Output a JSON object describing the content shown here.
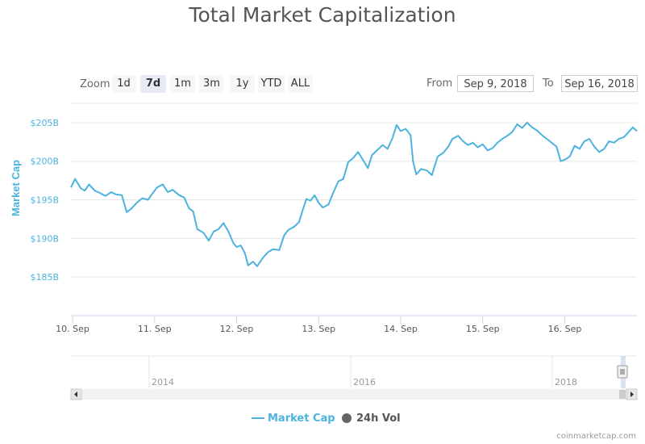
{
  "chart_data": {
    "type": "line",
    "title": "Total Market Capitalization",
    "ylabel": "Market Cap",
    "xlabel": "",
    "y_ticks": [
      {
        "value": 185,
        "label": "$185B"
      },
      {
        "value": 190,
        "label": "$190B"
      },
      {
        "value": 195,
        "label": "$195B"
      },
      {
        "value": 200,
        "label": "$200B"
      },
      {
        "value": 205,
        "label": "$205B"
      }
    ],
    "x_ticks": [
      "10. Sep",
      "11. Sep",
      "12. Sep",
      "13. Sep",
      "14. Sep",
      "15. Sep",
      "16. Sep"
    ],
    "ylim": [
      180,
      207.5
    ],
    "x_unit": "days from 10. Sep 00:00",
    "xlim": [
      -0.02,
      6.88
    ],
    "grid": true,
    "series": [
      {
        "name": "Market Cap",
        "color": "#4cb3e0",
        "points": [
          [
            -0.02,
            196.6
          ],
          [
            0.03,
            197.7
          ],
          [
            0.1,
            196.5
          ],
          [
            0.15,
            196.2
          ],
          [
            0.2,
            197.0
          ],
          [
            0.27,
            196.2
          ],
          [
            0.33,
            195.9
          ],
          [
            0.4,
            195.5
          ],
          [
            0.47,
            196.0
          ],
          [
            0.53,
            195.7
          ],
          [
            0.6,
            195.6
          ],
          [
            0.66,
            193.4
          ],
          [
            0.72,
            193.9
          ],
          [
            0.78,
            194.6
          ],
          [
            0.85,
            195.2
          ],
          [
            0.92,
            195.0
          ],
          [
            0.98,
            195.9
          ],
          [
            1.03,
            196.6
          ],
          [
            1.1,
            197.0
          ],
          [
            1.16,
            196.0
          ],
          [
            1.22,
            196.3
          ],
          [
            1.3,
            195.6
          ],
          [
            1.36,
            195.3
          ],
          [
            1.42,
            193.9
          ],
          [
            1.47,
            193.5
          ],
          [
            1.52,
            191.2
          ],
          [
            1.6,
            190.7
          ],
          [
            1.66,
            189.7
          ],
          [
            1.72,
            190.9
          ],
          [
            1.78,
            191.2
          ],
          [
            1.84,
            192.0
          ],
          [
            1.9,
            190.9
          ],
          [
            1.96,
            189.4
          ],
          [
            2.0,
            188.9
          ],
          [
            2.05,
            189.1
          ],
          [
            2.1,
            188.1
          ],
          [
            2.14,
            186.5
          ],
          [
            2.2,
            187.0
          ],
          [
            2.25,
            186.4
          ],
          [
            2.32,
            187.5
          ],
          [
            2.38,
            188.2
          ],
          [
            2.44,
            188.6
          ],
          [
            2.52,
            188.5
          ],
          [
            2.58,
            190.4
          ],
          [
            2.63,
            191.1
          ],
          [
            2.7,
            191.5
          ],
          [
            2.76,
            192.1
          ],
          [
            2.8,
            193.5
          ],
          [
            2.85,
            195.1
          ],
          [
            2.9,
            194.9
          ],
          [
            2.95,
            195.6
          ],
          [
            3.0,
            194.6
          ],
          [
            3.05,
            194.0
          ],
          [
            3.12,
            194.4
          ],
          [
            3.18,
            196.0
          ],
          [
            3.24,
            197.4
          ],
          [
            3.3,
            197.7
          ],
          [
            3.36,
            199.9
          ],
          [
            3.42,
            200.4
          ],
          [
            3.48,
            201.2
          ],
          [
            3.55,
            200.0
          ],
          [
            3.6,
            199.1
          ],
          [
            3.65,
            200.8
          ],
          [
            3.72,
            201.5
          ],
          [
            3.78,
            202.1
          ],
          [
            3.84,
            201.6
          ],
          [
            3.9,
            203.0
          ],
          [
            3.95,
            204.7
          ],
          [
            4.0,
            203.9
          ],
          [
            4.06,
            204.2
          ],
          [
            4.12,
            203.4
          ],
          [
            4.15,
            200.0
          ],
          [
            4.19,
            198.3
          ],
          [
            4.25,
            199.0
          ],
          [
            4.32,
            198.8
          ],
          [
            4.38,
            198.2
          ],
          [
            4.45,
            200.6
          ],
          [
            4.52,
            201.1
          ],
          [
            4.58,
            201.9
          ],
          [
            4.63,
            202.9
          ],
          [
            4.7,
            203.3
          ],
          [
            4.76,
            202.6
          ],
          [
            4.82,
            202.1
          ],
          [
            4.88,
            202.4
          ],
          [
            4.94,
            201.8
          ],
          [
            5.0,
            202.2
          ],
          [
            5.06,
            201.4
          ],
          [
            5.12,
            201.7
          ],
          [
            5.18,
            202.4
          ],
          [
            5.24,
            202.9
          ],
          [
            5.3,
            203.3
          ],
          [
            5.36,
            203.8
          ],
          [
            5.42,
            204.8
          ],
          [
            5.48,
            204.3
          ],
          [
            5.54,
            205.0
          ],
          [
            5.6,
            204.4
          ],
          [
            5.66,
            204.0
          ],
          [
            5.72,
            203.4
          ],
          [
            5.78,
            202.9
          ],
          [
            5.84,
            202.4
          ],
          [
            5.9,
            201.9
          ],
          [
            5.95,
            200.0
          ],
          [
            6.0,
            200.2
          ],
          [
            6.06,
            200.6
          ],
          [
            6.12,
            202.0
          ],
          [
            6.18,
            201.6
          ],
          [
            6.24,
            202.6
          ],
          [
            6.3,
            202.9
          ],
          [
            6.36,
            201.9
          ],
          [
            6.42,
            201.2
          ],
          [
            6.48,
            201.6
          ],
          [
            6.54,
            202.6
          ],
          [
            6.6,
            202.4
          ],
          [
            6.66,
            202.9
          ],
          [
            6.72,
            203.1
          ],
          [
            6.78,
            203.8
          ],
          [
            6.83,
            204.4
          ],
          [
            6.88,
            203.9
          ]
        ]
      }
    ],
    "navigator_ticks": [
      "2014",
      "2016",
      "2018"
    ],
    "legend_position": "bottom-center"
  },
  "ui": {
    "zoom_label": "Zoom",
    "zoom_buttons": [
      "1d",
      "7d",
      "1m",
      "3m",
      "1y",
      "YTD",
      "ALL"
    ],
    "from_label": "From",
    "from_value": "Sep 9, 2018",
    "to_label": "To",
    "to_value": "Sep 16, 2018",
    "legend_items": [
      "Market Cap",
      "24h Vol"
    ],
    "credit": "coinmarketcap.com",
    "colors": {
      "series": "#4cb3e0",
      "axis_label": "#4cb3e0",
      "vol_marker": "#666666"
    }
  }
}
